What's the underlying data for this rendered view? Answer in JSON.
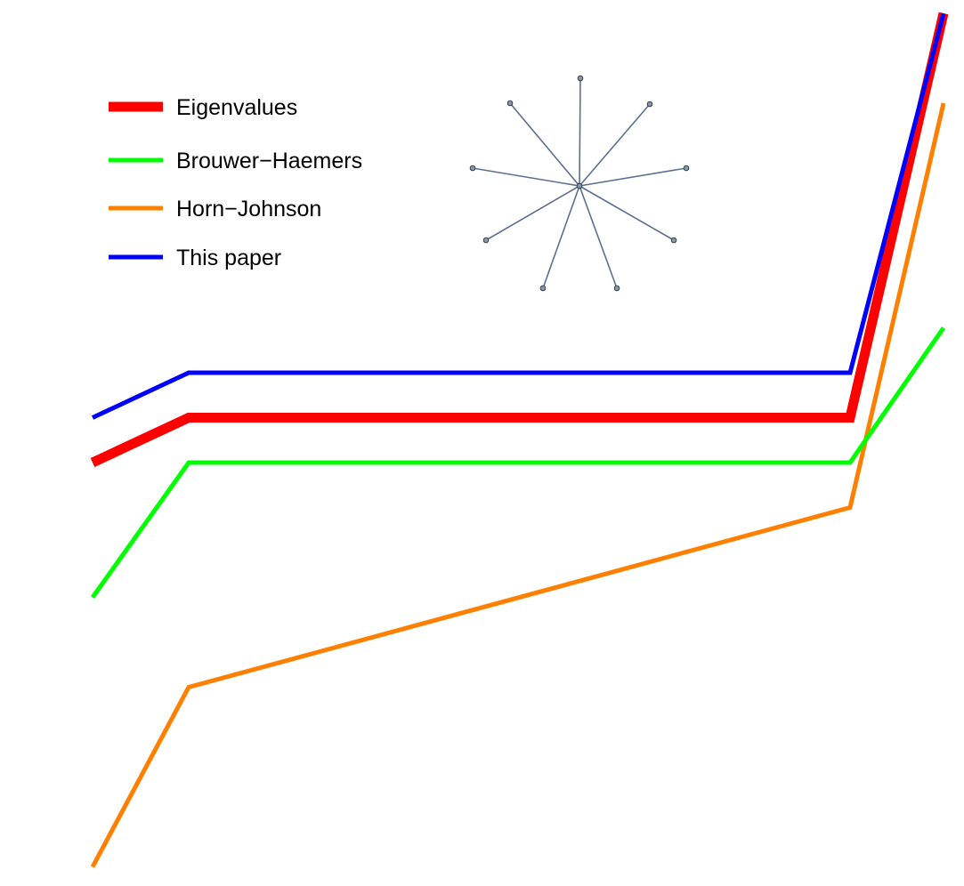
{
  "chart_data": {
    "type": "line",
    "title": "",
    "xlabel": "",
    "ylabel": "",
    "axes_visible": false,
    "grid": false,
    "legend_placement": "top-left",
    "x": [
      1,
      2,
      3,
      4
    ],
    "series": [
      {
        "name": "Eigenvalues",
        "color": "#ff0000",
        "style": "thick",
        "values": [
          1.0,
          2.0,
          2.0,
          11.0
        ]
      },
      {
        "name": "Brouwer−Haemers",
        "color": "#00ff00",
        "style": "normal",
        "values": [
          -2.0,
          1.0,
          1.0,
          4.0
        ]
      },
      {
        "name": "Horn−Johnson",
        "color": "#ff8000",
        "style": "normal",
        "values": [
          -8.0,
          -4.0,
          0.0,
          9.0
        ]
      },
      {
        "name": "This paper",
        "color": "#0000ff",
        "style": "normal",
        "values": [
          2.0,
          3.0,
          3.0,
          11.0
        ]
      }
    ],
    "inset_graph": {
      "description_type": "star",
      "leaves": 9,
      "node_color": "#6a7a8a",
      "edge_color": "#5a7090"
    }
  }
}
